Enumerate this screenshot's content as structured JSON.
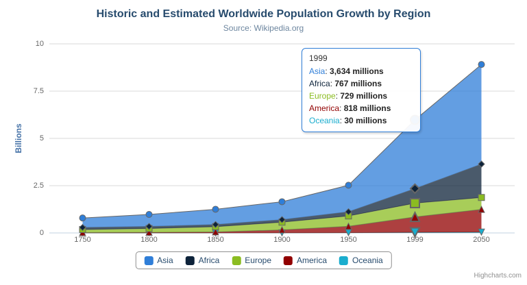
{
  "chart": {
    "title": "Historic and Estimated Worldwide Population Growth by Region",
    "subtitle": "Source: Wikipedia.org",
    "credits": "Highcharts.com"
  },
  "chart_data": {
    "type": "area",
    "stacking": "normal",
    "title": "Historic and Estimated Worldwide Population Growth by Region",
    "subtitle": "Source: Wikipedia.org",
    "xlabel": "",
    "ylabel": "Billions",
    "unit": "millions",
    "categories": [
      "1750",
      "1800",
      "1850",
      "1900",
      "1950",
      "1999",
      "2050"
    ],
    "yticks": [
      0,
      2.5,
      5,
      7.5,
      10
    ],
    "ytick_labels": [
      "0",
      "2.5",
      "5",
      "7.5",
      "10"
    ],
    "ylim": [
      0,
      10
    ],
    "grid": true,
    "legend_position": "bottom",
    "series": [
      {
        "name": "Asia",
        "color": "#2f7ed8",
        "marker": "circle",
        "values": [
          502,
          635,
          809,
          947,
          1402,
          3634,
          5268
        ]
      },
      {
        "name": "Africa",
        "color": "#0d233a",
        "marker": "diamond",
        "values": [
          106,
          107,
          111,
          133,
          221,
          767,
          1766
        ]
      },
      {
        "name": "Europe",
        "color": "#8bbc21",
        "marker": "square",
        "values": [
          163,
          203,
          276,
          408,
          547,
          729,
          628
        ]
      },
      {
        "name": "America",
        "color": "#910000",
        "marker": "triangle",
        "values": [
          18,
          31,
          54,
          156,
          339,
          818,
          1201
        ]
      },
      {
        "name": "Oceania",
        "color": "#1aadce",
        "marker": "triangle-down",
        "values": [
          2,
          2,
          2,
          6,
          13,
          30,
          46
        ]
      }
    ],
    "stack_order_bottom_to_top": [
      "Oceania",
      "America",
      "Europe",
      "Africa",
      "Asia"
    ],
    "hovered_category": "1999",
    "fill_opacity": 0.75,
    "line_color": "#666666",
    "grid_color": "#d8d8d8",
    "axis_line_color": "#c0d0e0"
  },
  "tooltip": {
    "header": "1999",
    "border_color": "#2f7ed8",
    "rows": [
      {
        "label": "Asia",
        "value": "3,634 millions",
        "color": "#2f7ed8"
      },
      {
        "label": "Africa",
        "value": "767 millions",
        "color": "#0d233a"
      },
      {
        "label": "Europe",
        "value": "729 millions",
        "color": "#8bbc21"
      },
      {
        "label": "America",
        "value": "818 millions",
        "color": "#910000"
      },
      {
        "label": "Oceania",
        "value": "30 millions",
        "color": "#1aadce"
      }
    ]
  },
  "legend": {
    "items": [
      {
        "label": "Asia",
        "color": "#2f7ed8"
      },
      {
        "label": "Africa",
        "color": "#0d233a"
      },
      {
        "label": "Europe",
        "color": "#8bbc21"
      },
      {
        "label": "America",
        "color": "#910000"
      },
      {
        "label": "Oceania",
        "color": "#1aadce"
      }
    ]
  },
  "icons": {
    "context_menu": "hamburger-icon"
  }
}
